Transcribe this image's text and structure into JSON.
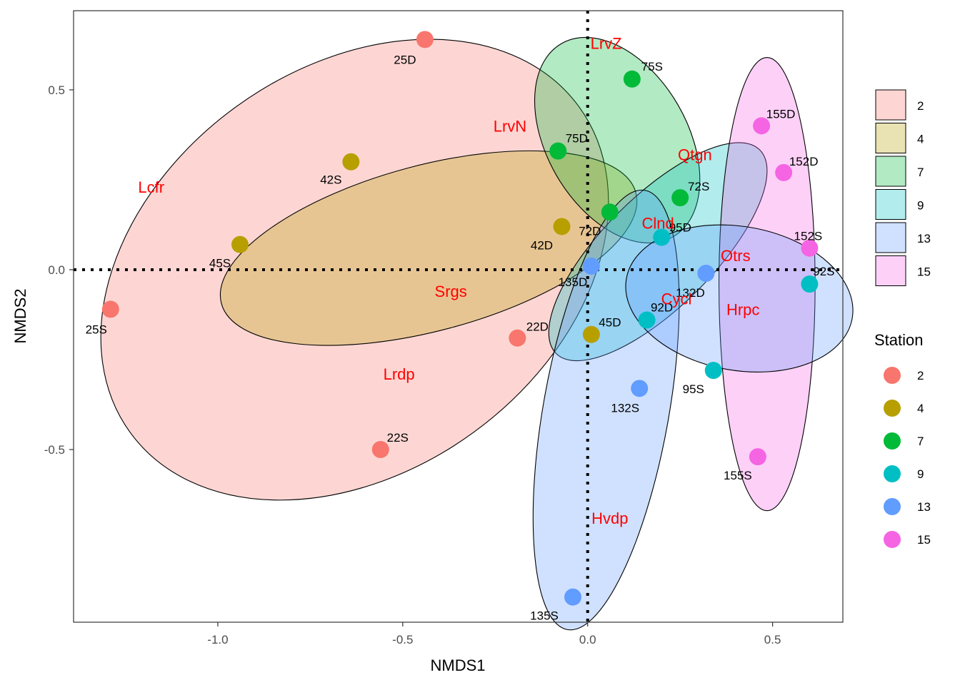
{
  "chart_data": {
    "type": "scatter",
    "xlabel": "NMDS1",
    "ylabel": "NMDS2",
    "xlim": [
      -1.39,
      0.69
    ],
    "ylim": [
      -0.98,
      0.72
    ],
    "x_ticks": [
      -1.0,
      -0.5,
      0.0,
      0.5
    ],
    "y_ticks": [
      -0.5,
      0.0,
      0.5
    ],
    "x_tick_labels": [
      "-1.0",
      "-0.5",
      "0.0",
      "0.5"
    ],
    "y_tick_labels": [
      "-0.5",
      "0.0",
      "0.5"
    ],
    "grid": false,
    "reference_lines": {
      "x": 0,
      "y": 0,
      "style": "dotted"
    },
    "legend": {
      "title": "Station",
      "placement": "right",
      "entries": [
        "2",
        "4",
        "7",
        "9",
        "13",
        "15"
      ]
    },
    "series": [
      {
        "name": "2",
        "color": "#F8766D",
        "points": [
          {
            "x": -0.44,
            "y": 0.64,
            "label": "25D"
          },
          {
            "x": -1.29,
            "y": -0.11,
            "label": "25S"
          },
          {
            "x": -0.19,
            "y": -0.19,
            "label": "22D"
          },
          {
            "x": -0.56,
            "y": -0.5,
            "label": "22S"
          }
        ],
        "ellipse": {
          "cx": -0.63,
          "cy": 0.0,
          "rx": 0.75,
          "ry": 0.56,
          "angle_deg": -36
        }
      },
      {
        "name": "4",
        "color": "#B79F00",
        "points": [
          {
            "x": -0.64,
            "y": 0.3,
            "label": "42S"
          },
          {
            "x": -0.94,
            "y": 0.07,
            "label": "45S"
          },
          {
            "x": -0.07,
            "y": 0.12,
            "label": "42D"
          },
          {
            "x": 0.01,
            "y": -0.18,
            "label": "45D"
          }
        ],
        "ellipse": {
          "cx": -0.43,
          "cy": 0.06,
          "rx": 0.58,
          "ry": 0.23,
          "angle_deg": -15
        }
      },
      {
        "name": "7",
        "color": "#00BA38",
        "points": [
          {
            "x": 0.12,
            "y": 0.53,
            "label": "75S"
          },
          {
            "x": -0.08,
            "y": 0.33,
            "label": "75D"
          },
          {
            "x": 0.25,
            "y": 0.2,
            "label": "72S"
          },
          {
            "x": 0.06,
            "y": 0.16,
            "label": "72D"
          }
        ],
        "ellipse": {
          "cx": 0.08,
          "cy": 0.36,
          "rx": 0.19,
          "ry": 0.31,
          "angle_deg": -30
        }
      },
      {
        "name": "9",
        "color": "#00BFC4",
        "points": [
          {
            "x": 0.2,
            "y": 0.09,
            "label": "95D"
          },
          {
            "x": 0.6,
            "y": -0.04,
            "label": "92S"
          },
          {
            "x": 0.16,
            "y": -0.14,
            "label": "92D"
          },
          {
            "x": 0.34,
            "y": -0.28,
            "label": "95S"
          }
        ],
        "ellipse": {
          "cx": 0.19,
          "cy": 0.05,
          "rx": 0.15,
          "ry": 0.4,
          "angle_deg": 45
        }
      },
      {
        "name": "13",
        "color": "#619CFF",
        "points": [
          {
            "x": 0.01,
            "y": 0.01,
            "label": "135D"
          },
          {
            "x": 0.32,
            "y": -0.01,
            "label": "132D"
          },
          {
            "x": 0.14,
            "y": -0.33,
            "label": "132S"
          },
          {
            "x": -0.04,
            "y": -0.91,
            "label": "135S"
          }
        ],
        "ellipse": {
          "cx": 0.05,
          "cy": -0.39,
          "rx": 0.17,
          "ry": 0.62,
          "angle_deg": 10
        }
      },
      {
        "name": "15",
        "color": "#F564E3",
        "points": [
          {
            "x": 0.47,
            "y": 0.4,
            "label": "155D"
          },
          {
            "x": 0.53,
            "y": 0.27,
            "label": "152D"
          },
          {
            "x": 0.6,
            "y": 0.06,
            "label": "152S"
          },
          {
            "x": 0.46,
            "y": -0.52,
            "label": "155S"
          }
        ],
        "ellipse": {
          "cx": 0.485,
          "cy": -0.04,
          "rx": 0.13,
          "ry": 0.63,
          "angle_deg": 0
        }
      }
    ],
    "extra_ellipses": [
      {
        "color": "#619CFF",
        "cx": 0.41,
        "cy": -0.08,
        "rx": 0.31,
        "ry": 0.2,
        "angle_deg": 10
      }
    ],
    "annotations": [
      {
        "text": "LrvZ",
        "x": 0.05,
        "y": 0.63
      },
      {
        "text": "LrvN",
        "x": -0.21,
        "y": 0.4
      },
      {
        "text": "Lcfr",
        "x": -1.18,
        "y": 0.23
      },
      {
        "text": "Qtgn",
        "x": 0.29,
        "y": 0.32
      },
      {
        "text": "Clnd",
        "x": 0.19,
        "y": 0.13
      },
      {
        "text": "Otrs",
        "x": 0.4,
        "y": 0.04
      },
      {
        "text": "Srgs",
        "x": -0.37,
        "y": -0.06
      },
      {
        "text": "Cycl",
        "x": 0.24,
        "y": -0.08
      },
      {
        "text": "Hrpc",
        "x": 0.42,
        "y": -0.11
      },
      {
        "text": "Lrdp",
        "x": -0.51,
        "y": -0.29
      },
      {
        "text": "Hvdp",
        "x": 0.06,
        "y": -0.69
      }
    ]
  }
}
